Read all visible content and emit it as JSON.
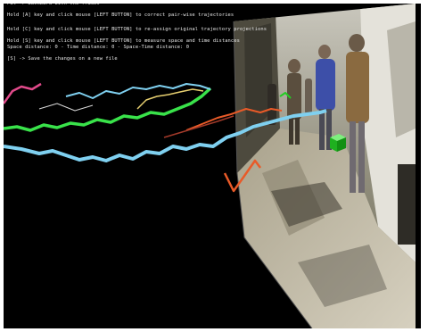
{
  "hud": {
    "lines": [
      "Pat -> Backward with the frames",
      "Hold [A] key and click mouse [LEFT BUTTON] to correct pair-wise trajectories",
      "Hold [C] key and click mouse [LEFT BUTTON] to re-assign original trajectory projections",
      "Hold [S] key and click mouse [LEFT BUTTON] to measure space and time distances",
      "Space distance: 0 - Time distance: 0 - Space-Time distance: 0",
      "[S] -> Save the changes on a new file"
    ]
  },
  "colors": {
    "background": "#000000",
    "trajectory_cyan": "#7fd0f0",
    "trajectory_green": "#39e24a",
    "trajectory_pink": "#e04a8a",
    "trajectory_orange": "#e85a28",
    "trajectory_yellow": "#e8d070",
    "marker_green": "#22cc22"
  },
  "icons": {
    "cube_marker": "green-cube-icon"
  }
}
